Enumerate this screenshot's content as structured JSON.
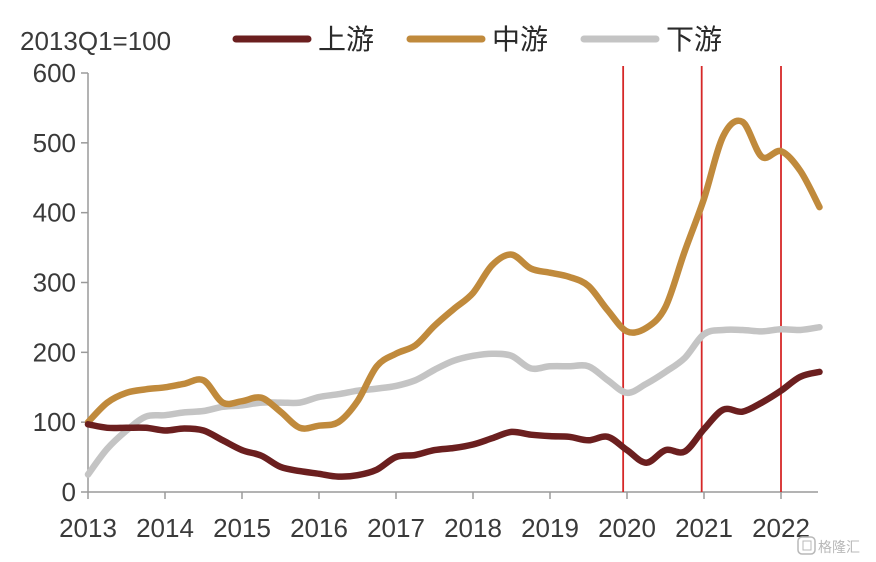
{
  "chart_data": {
    "type": "line",
    "unit_label": "2013Q1=100",
    "ylim": [
      0,
      600
    ],
    "y_ticks": [
      "0",
      "100",
      "200",
      "300",
      "400",
      "500",
      "600"
    ],
    "x_ticks": [
      "2013",
      "2014",
      "2015",
      "2016",
      "2017",
      "2018",
      "2019",
      "2020",
      "2021",
      "2022"
    ],
    "legend_position": "top",
    "series": [
      {
        "name": "上游",
        "color": "#6b1f1f",
        "points": [
          [
            2013.0,
            97
          ],
          [
            2013.25,
            92
          ],
          [
            2013.5,
            92
          ],
          [
            2013.75,
            92
          ],
          [
            2014.0,
            88
          ],
          [
            2014.25,
            91
          ],
          [
            2014.5,
            88
          ],
          [
            2014.75,
            74
          ],
          [
            2015.0,
            60
          ],
          [
            2015.25,
            52
          ],
          [
            2015.5,
            36
          ],
          [
            2015.75,
            30
          ],
          [
            2016.0,
            26
          ],
          [
            2016.25,
            22
          ],
          [
            2016.5,
            24
          ],
          [
            2016.75,
            32
          ],
          [
            2017.0,
            50
          ],
          [
            2017.25,
            53
          ],
          [
            2017.5,
            60
          ],
          [
            2017.75,
            63
          ],
          [
            2018.0,
            68
          ],
          [
            2018.25,
            77
          ],
          [
            2018.5,
            86
          ],
          [
            2018.75,
            82
          ],
          [
            2019.0,
            80
          ],
          [
            2019.25,
            79
          ],
          [
            2019.5,
            74
          ],
          [
            2019.75,
            79
          ],
          [
            2020.0,
            60
          ],
          [
            2020.25,
            42
          ],
          [
            2020.5,
            60
          ],
          [
            2020.75,
            58
          ],
          [
            2021.0,
            90
          ],
          [
            2021.25,
            118
          ],
          [
            2021.5,
            115
          ],
          [
            2021.75,
            128
          ],
          [
            2022.0,
            145
          ],
          [
            2022.25,
            165
          ],
          [
            2022.5,
            172
          ]
        ]
      },
      {
        "name": "中游",
        "color": "#c08a3c",
        "points": [
          [
            2013.0,
            100
          ],
          [
            2013.25,
            128
          ],
          [
            2013.5,
            142
          ],
          [
            2013.75,
            147
          ],
          [
            2014.0,
            150
          ],
          [
            2014.25,
            155
          ],
          [
            2014.5,
            160
          ],
          [
            2014.75,
            128
          ],
          [
            2015.0,
            130
          ],
          [
            2015.25,
            135
          ],
          [
            2015.5,
            115
          ],
          [
            2015.75,
            92
          ],
          [
            2016.0,
            95
          ],
          [
            2016.25,
            100
          ],
          [
            2016.5,
            130
          ],
          [
            2016.75,
            180
          ],
          [
            2017.0,
            198
          ],
          [
            2017.25,
            210
          ],
          [
            2017.5,
            238
          ],
          [
            2017.75,
            262
          ],
          [
            2018.0,
            285
          ],
          [
            2018.25,
            325
          ],
          [
            2018.5,
            340
          ],
          [
            2018.75,
            320
          ],
          [
            2019.0,
            314
          ],
          [
            2019.25,
            308
          ],
          [
            2019.5,
            295
          ],
          [
            2019.75,
            260
          ],
          [
            2020.0,
            230
          ],
          [
            2020.25,
            235
          ],
          [
            2020.5,
            265
          ],
          [
            2020.75,
            345
          ],
          [
            2021.0,
            420
          ],
          [
            2021.25,
            510
          ],
          [
            2021.5,
            530
          ],
          [
            2021.75,
            480
          ],
          [
            2022.0,
            488
          ],
          [
            2022.25,
            460
          ],
          [
            2022.5,
            408
          ]
        ]
      },
      {
        "name": "下游",
        "color": "#c4c4c4",
        "points": [
          [
            2013.0,
            25
          ],
          [
            2013.25,
            62
          ],
          [
            2013.5,
            88
          ],
          [
            2013.75,
            108
          ],
          [
            2014.0,
            110
          ],
          [
            2014.25,
            114
          ],
          [
            2014.5,
            116
          ],
          [
            2014.75,
            122
          ],
          [
            2015.0,
            124
          ],
          [
            2015.25,
            128
          ],
          [
            2015.5,
            128
          ],
          [
            2015.75,
            128
          ],
          [
            2016.0,
            136
          ],
          [
            2016.25,
            140
          ],
          [
            2016.5,
            145
          ],
          [
            2016.75,
            148
          ],
          [
            2017.0,
            152
          ],
          [
            2017.25,
            160
          ],
          [
            2017.5,
            175
          ],
          [
            2017.75,
            188
          ],
          [
            2018.0,
            195
          ],
          [
            2018.25,
            198
          ],
          [
            2018.5,
            195
          ],
          [
            2018.75,
            177
          ],
          [
            2019.0,
            180
          ],
          [
            2019.25,
            180
          ],
          [
            2019.5,
            180
          ],
          [
            2019.75,
            160
          ],
          [
            2020.0,
            142
          ],
          [
            2020.25,
            155
          ],
          [
            2020.5,
            172
          ],
          [
            2020.75,
            192
          ],
          [
            2021.0,
            226
          ],
          [
            2021.25,
            232
          ],
          [
            2021.5,
            232
          ],
          [
            2021.75,
            230
          ],
          [
            2022.0,
            233
          ],
          [
            2022.25,
            232
          ],
          [
            2022.5,
            236
          ]
        ]
      }
    ],
    "reference_lines": {
      "x": [
        2019.95,
        2020.97,
        2022.0
      ],
      "color": "#d62828"
    }
  },
  "watermark": "格隆汇"
}
